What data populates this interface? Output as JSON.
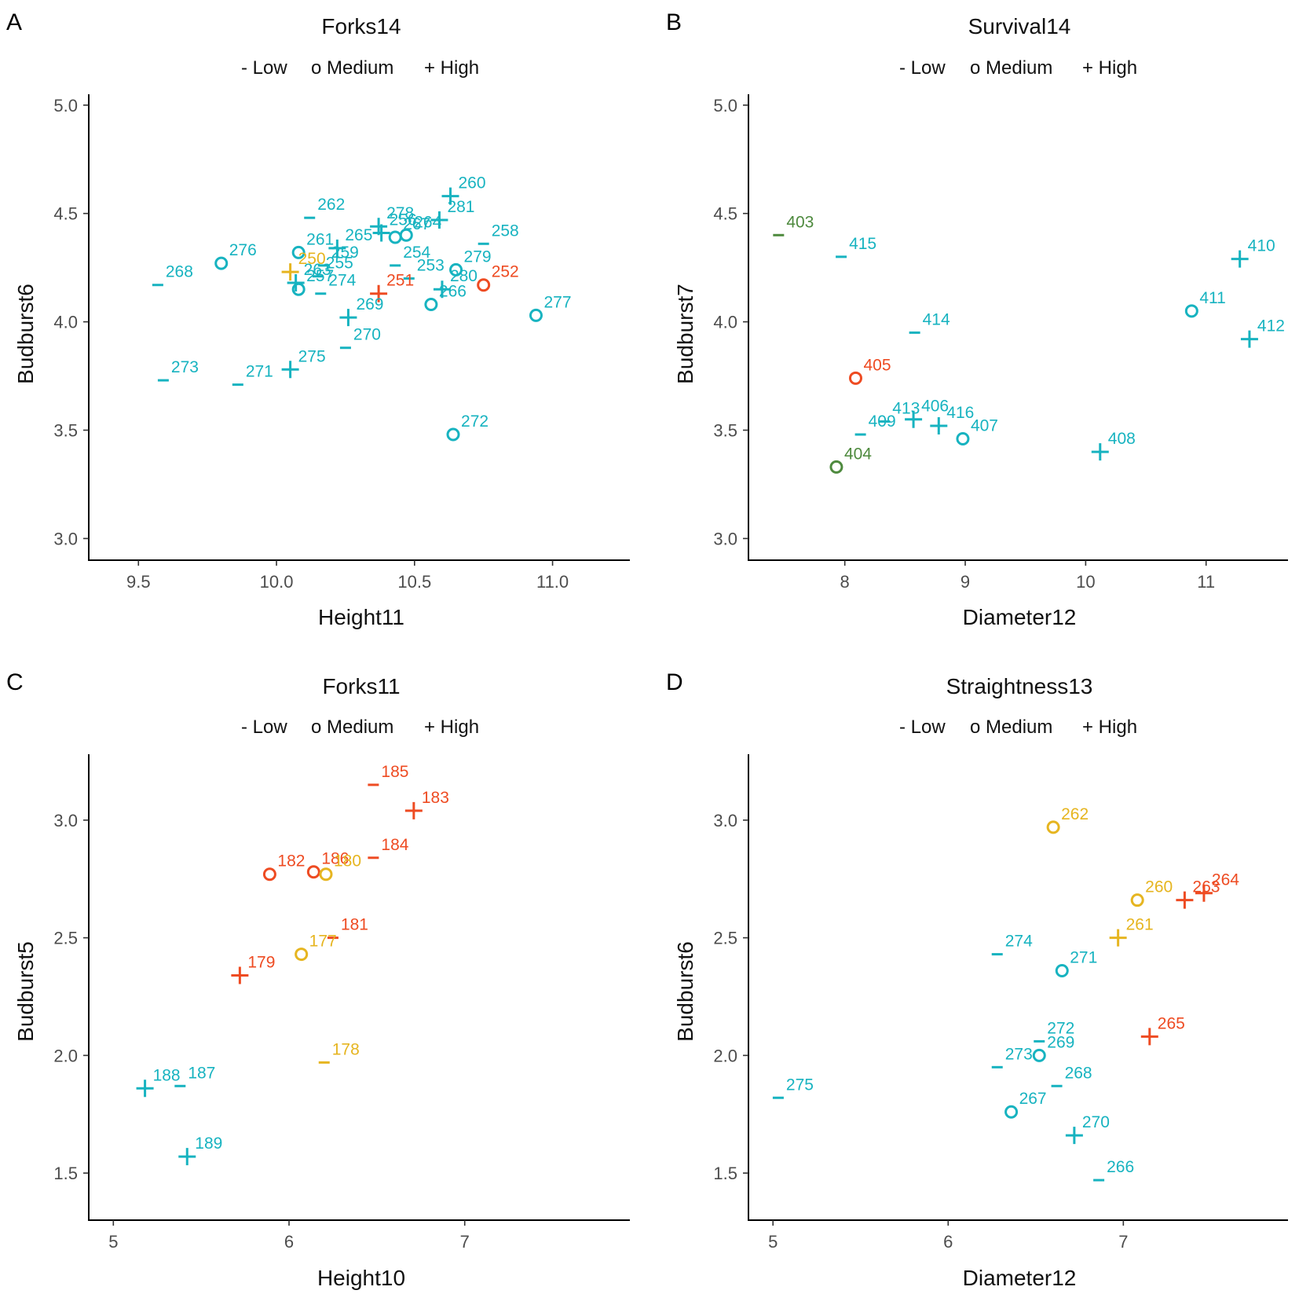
{
  "legend": {
    "low": "- Low",
    "medium": "o Medium",
    "high": "+ High"
  },
  "colors": {
    "teal": "#17b3c0",
    "orange": "#ee4b22",
    "yellow": "#e6b520",
    "green": "#4e8a3e"
  },
  "chart_data": [
    {
      "type": "scatter",
      "panel": "A",
      "title": "Forks14",
      "xlabel": "Height11",
      "ylabel": "Budburst6",
      "xlim": [
        9.32,
        11.28
      ],
      "ylim": [
        2.9,
        5.05
      ],
      "xticks": [
        "9.5",
        "10.0",
        "10.5",
        "11.0"
      ],
      "xtick_values": [
        9.5,
        10.0,
        10.5,
        11.0
      ],
      "yticks": [
        "3.0",
        "3.5",
        "4.0",
        "4.5",
        "5.0"
      ],
      "ytick_values": [
        3.0,
        3.5,
        4.0,
        4.5,
        5.0
      ],
      "legend_position": "top",
      "points": [
        {
          "label": "276",
          "x": 9.8,
          "y": 4.27,
          "level": "Medium",
          "color": "teal"
        },
        {
          "label": "268",
          "x": 9.57,
          "y": 4.17,
          "level": "Low",
          "color": "teal"
        },
        {
          "label": "273",
          "x": 9.59,
          "y": 3.73,
          "level": "Low",
          "color": "teal"
        },
        {
          "label": "262",
          "x": 10.12,
          "y": 4.48,
          "level": "Low",
          "color": "teal"
        },
        {
          "label": "261",
          "x": 10.08,
          "y": 4.32,
          "level": "Medium",
          "color": "teal"
        },
        {
          "label": "265",
          "x": 10.22,
          "y": 4.34,
          "level": "High",
          "color": "teal"
        },
        {
          "label": "259",
          "x": 10.17,
          "y": 4.26,
          "level": "Low",
          "color": "teal"
        },
        {
          "label": "250",
          "x": 10.05,
          "y": 4.23,
          "level": "High",
          "color": "yellow"
        },
        {
          "label": "255",
          "x": 10.15,
          "y": 4.21,
          "level": "Low",
          "color": "teal"
        },
        {
          "label": "263",
          "x": 10.07,
          "y": 4.18,
          "level": "High",
          "color": "teal"
        },
        {
          "label": "257",
          "x": 10.08,
          "y": 4.15,
          "level": "Medium",
          "color": "teal"
        },
        {
          "label": "274",
          "x": 10.16,
          "y": 4.13,
          "level": "Low",
          "color": "teal"
        },
        {
          "label": "278",
          "x": 10.37,
          "y": 4.44,
          "level": "High",
          "color": "teal"
        },
        {
          "label": "256",
          "x": 10.38,
          "y": 4.41,
          "level": "High",
          "color": "teal"
        },
        {
          "label": "267",
          "x": 10.43,
          "y": 4.39,
          "level": "Medium",
          "color": "teal"
        },
        {
          "label": "264",
          "x": 10.47,
          "y": 4.4,
          "level": "Medium",
          "color": "teal"
        },
        {
          "label": "254",
          "x": 10.43,
          "y": 4.26,
          "level": "Low",
          "color": "teal"
        },
        {
          "label": "253",
          "x": 10.48,
          "y": 4.2,
          "level": "Low",
          "color": "teal"
        },
        {
          "label": "251",
          "x": 10.37,
          "y": 4.13,
          "level": "High",
          "color": "orange"
        },
        {
          "label": "260",
          "x": 10.63,
          "y": 4.58,
          "level": "High",
          "color": "teal"
        },
        {
          "label": "281",
          "x": 10.59,
          "y": 4.47,
          "level": "High",
          "color": "teal"
        },
        {
          "label": "258",
          "x": 10.75,
          "y": 4.36,
          "level": "Low",
          "color": "teal"
        },
        {
          "label": "279",
          "x": 10.65,
          "y": 4.24,
          "level": "Medium",
          "color": "teal"
        },
        {
          "label": "252",
          "x": 10.75,
          "y": 4.17,
          "level": "Medium",
          "color": "orange"
        },
        {
          "label": "280",
          "x": 10.6,
          "y": 4.15,
          "level": "High",
          "color": "teal"
        },
        {
          "label": "266",
          "x": 10.56,
          "y": 4.08,
          "level": "Medium",
          "color": "teal"
        },
        {
          "label": "277",
          "x": 10.94,
          "y": 4.03,
          "level": "Medium",
          "color": "teal"
        },
        {
          "label": "269",
          "x": 10.26,
          "y": 4.02,
          "level": "High",
          "color": "teal"
        },
        {
          "label": "270",
          "x": 10.25,
          "y": 3.88,
          "level": "Low",
          "color": "teal"
        },
        {
          "label": "275",
          "x": 10.05,
          "y": 3.78,
          "level": "High",
          "color": "teal"
        },
        {
          "label": "271",
          "x": 9.86,
          "y": 3.71,
          "level": "Low",
          "color": "teal"
        },
        {
          "label": "272",
          "x": 10.64,
          "y": 3.48,
          "level": "Medium",
          "color": "teal"
        }
      ]
    },
    {
      "type": "scatter",
      "panel": "B",
      "title": "Survival14",
      "xlabel": "Diameter12",
      "ylabel": "Budburst7",
      "xlim": [
        7.2,
        11.68
      ],
      "ylim": [
        2.9,
        5.05
      ],
      "xticks": [
        "8",
        "9",
        "10",
        "11"
      ],
      "xtick_values": [
        8,
        9,
        10,
        11
      ],
      "yticks": [
        "3.0",
        "3.5",
        "4.0",
        "4.5",
        "5.0"
      ],
      "ytick_values": [
        3.0,
        3.5,
        4.0,
        4.5,
        5.0
      ],
      "legend_position": "top",
      "points": [
        {
          "label": "403",
          "x": 7.45,
          "y": 4.4,
          "level": "Low",
          "color": "green"
        },
        {
          "label": "415",
          "x": 7.97,
          "y": 4.3,
          "level": "Low",
          "color": "teal"
        },
        {
          "label": "414",
          "x": 8.58,
          "y": 3.95,
          "level": "Low",
          "color": "teal"
        },
        {
          "label": "405",
          "x": 8.09,
          "y": 3.74,
          "level": "Medium",
          "color": "orange"
        },
        {
          "label": "406",
          "x": 8.57,
          "y": 3.55,
          "level": "High",
          "color": "teal"
        },
        {
          "label": "413",
          "x": 8.33,
          "y": 3.54,
          "level": "Low",
          "color": "teal"
        },
        {
          "label": "416",
          "x": 8.78,
          "y": 3.52,
          "level": "High",
          "color": "teal"
        },
        {
          "label": "409",
          "x": 8.13,
          "y": 3.48,
          "level": "Low",
          "color": "teal"
        },
        {
          "label": "407",
          "x": 8.98,
          "y": 3.46,
          "level": "Medium",
          "color": "teal"
        },
        {
          "label": "404",
          "x": 7.93,
          "y": 3.33,
          "level": "Medium",
          "color": "green"
        },
        {
          "label": "408",
          "x": 10.12,
          "y": 3.4,
          "level": "High",
          "color": "teal"
        },
        {
          "label": "410",
          "x": 11.28,
          "y": 4.29,
          "level": "High",
          "color": "teal"
        },
        {
          "label": "411",
          "x": 10.88,
          "y": 4.05,
          "level": "Medium",
          "color": "teal"
        },
        {
          "label": "412",
          "x": 11.36,
          "y": 3.92,
          "level": "High",
          "color": "teal"
        }
      ]
    },
    {
      "type": "scatter",
      "panel": "C",
      "title": "Forks11",
      "xlabel": "Height10",
      "ylabel": "Budburst5",
      "xlim": [
        4.86,
        7.94
      ],
      "ylim": [
        1.3,
        3.28
      ],
      "xticks": [
        "5",
        "6",
        "7"
      ],
      "xtick_values": [
        5,
        6,
        7
      ],
      "yticks": [
        "1.5",
        "2.0",
        "2.5",
        "3.0"
      ],
      "ytick_values": [
        1.5,
        2.0,
        2.5,
        3.0
      ],
      "legend_position": "top",
      "points": [
        {
          "label": "185",
          "x": 6.48,
          "y": 3.15,
          "level": "Low",
          "color": "orange"
        },
        {
          "label": "183",
          "x": 6.71,
          "y": 3.04,
          "level": "High",
          "color": "orange"
        },
        {
          "label": "184",
          "x": 6.48,
          "y": 2.84,
          "level": "Low",
          "color": "orange"
        },
        {
          "label": "182",
          "x": 5.89,
          "y": 2.77,
          "level": "Medium",
          "color": "orange"
        },
        {
          "label": "186",
          "x": 6.14,
          "y": 2.78,
          "level": "Medium",
          "color": "orange"
        },
        {
          "label": "180",
          "x": 6.21,
          "y": 2.77,
          "level": "Medium",
          "color": "yellow"
        },
        {
          "label": "181",
          "x": 6.25,
          "y": 2.5,
          "level": "Low",
          "color": "orange"
        },
        {
          "label": "177",
          "x": 6.07,
          "y": 2.43,
          "level": "Medium",
          "color": "yellow"
        },
        {
          "label": "179",
          "x": 5.72,
          "y": 2.34,
          "level": "High",
          "color": "orange"
        },
        {
          "label": "178",
          "x": 6.2,
          "y": 1.97,
          "level": "Low",
          "color": "yellow"
        },
        {
          "label": "188",
          "x": 5.18,
          "y": 1.86,
          "level": "High",
          "color": "teal"
        },
        {
          "label": "187",
          "x": 5.38,
          "y": 1.87,
          "level": "Low",
          "color": "teal"
        },
        {
          "label": "189",
          "x": 5.42,
          "y": 1.57,
          "level": "High",
          "color": "teal"
        }
      ]
    },
    {
      "type": "scatter",
      "panel": "D",
      "title": "Straightness13",
      "xlabel": "Diameter12",
      "ylabel": "Budburst6",
      "xlim": [
        4.86,
        7.94
      ],
      "ylim": [
        1.3,
        3.28
      ],
      "xticks": [
        "5",
        "6",
        "7"
      ],
      "xtick_values": [
        5,
        6,
        7
      ],
      "yticks": [
        "1.5",
        "2.0",
        "2.5",
        "3.0"
      ],
      "ytick_values": [
        1.5,
        2.0,
        2.5,
        3.0
      ],
      "legend_position": "top",
      "points": [
        {
          "label": "262",
          "x": 6.6,
          "y": 2.97,
          "level": "Medium",
          "color": "yellow"
        },
        {
          "label": "260",
          "x": 7.08,
          "y": 2.66,
          "level": "Medium",
          "color": "yellow"
        },
        {
          "label": "263",
          "x": 7.35,
          "y": 2.66,
          "level": "High",
          "color": "orange"
        },
        {
          "label": "264",
          "x": 7.46,
          "y": 2.69,
          "level": "High",
          "color": "orange"
        },
        {
          "label": "261",
          "x": 6.97,
          "y": 2.5,
          "level": "High",
          "color": "yellow"
        },
        {
          "label": "274",
          "x": 6.28,
          "y": 2.43,
          "level": "Low",
          "color": "teal"
        },
        {
          "label": "271",
          "x": 6.65,
          "y": 2.36,
          "level": "Medium",
          "color": "teal"
        },
        {
          "label": "265",
          "x": 7.15,
          "y": 2.08,
          "level": "High",
          "color": "orange"
        },
        {
          "label": "272",
          "x": 6.52,
          "y": 2.06,
          "level": "Low",
          "color": "teal"
        },
        {
          "label": "269",
          "x": 6.52,
          "y": 2.0,
          "level": "Medium",
          "color": "teal"
        },
        {
          "label": "273",
          "x": 6.28,
          "y": 1.95,
          "level": "Low",
          "color": "teal"
        },
        {
          "label": "268",
          "x": 6.62,
          "y": 1.87,
          "level": "Low",
          "color": "teal"
        },
        {
          "label": "275",
          "x": 5.03,
          "y": 1.82,
          "level": "Low",
          "color": "teal"
        },
        {
          "label": "267",
          "x": 6.36,
          "y": 1.76,
          "level": "Medium",
          "color": "teal"
        },
        {
          "label": "270",
          "x": 6.72,
          "y": 1.66,
          "level": "High",
          "color": "teal"
        },
        {
          "label": "266",
          "x": 6.86,
          "y": 1.47,
          "level": "Low",
          "color": "teal"
        }
      ]
    }
  ]
}
